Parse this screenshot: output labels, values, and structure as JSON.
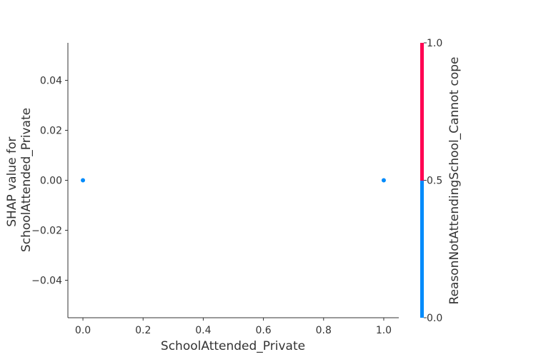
{
  "chart_data": {
    "type": "scatter",
    "title": "",
    "xlabel": "SchoolAttended_Private",
    "ylabel": [
      "SHAP value for",
      "SchoolAttended_Private"
    ],
    "xlim": [
      -0.05,
      1.05
    ],
    "ylim": [
      -0.055,
      0.055
    ],
    "x_ticks": [
      0.0,
      0.2,
      0.4,
      0.6,
      0.8,
      1.0
    ],
    "x_tick_labels": [
      "0.0",
      "0.2",
      "0.4",
      "0.6",
      "0.8",
      "1.0"
    ],
    "y_ticks": [
      0.04,
      0.02,
      0.0,
      -0.02,
      -0.04
    ],
    "y_tick_labels": [
      "0.04",
      "0.02",
      "0.00",
      "−0.02",
      "−0.04"
    ],
    "grid": false,
    "points": [
      {
        "x": 0.0,
        "y": 0.0,
        "color_value": 0.0
      },
      {
        "x": 1.0,
        "y": 0.0,
        "color_value": 0.0
      }
    ],
    "colorbar": {
      "label": "ReasonNotAttendingSchool_Cannot cope",
      "ticks": [
        1.0,
        0.5,
        0.0
      ],
      "tick_labels": [
        "1.0",
        "0.5",
        "0.0"
      ],
      "range": [
        0.0,
        1.0
      ],
      "low_color": "#008bfb",
      "high_color": "#ff0052"
    }
  }
}
